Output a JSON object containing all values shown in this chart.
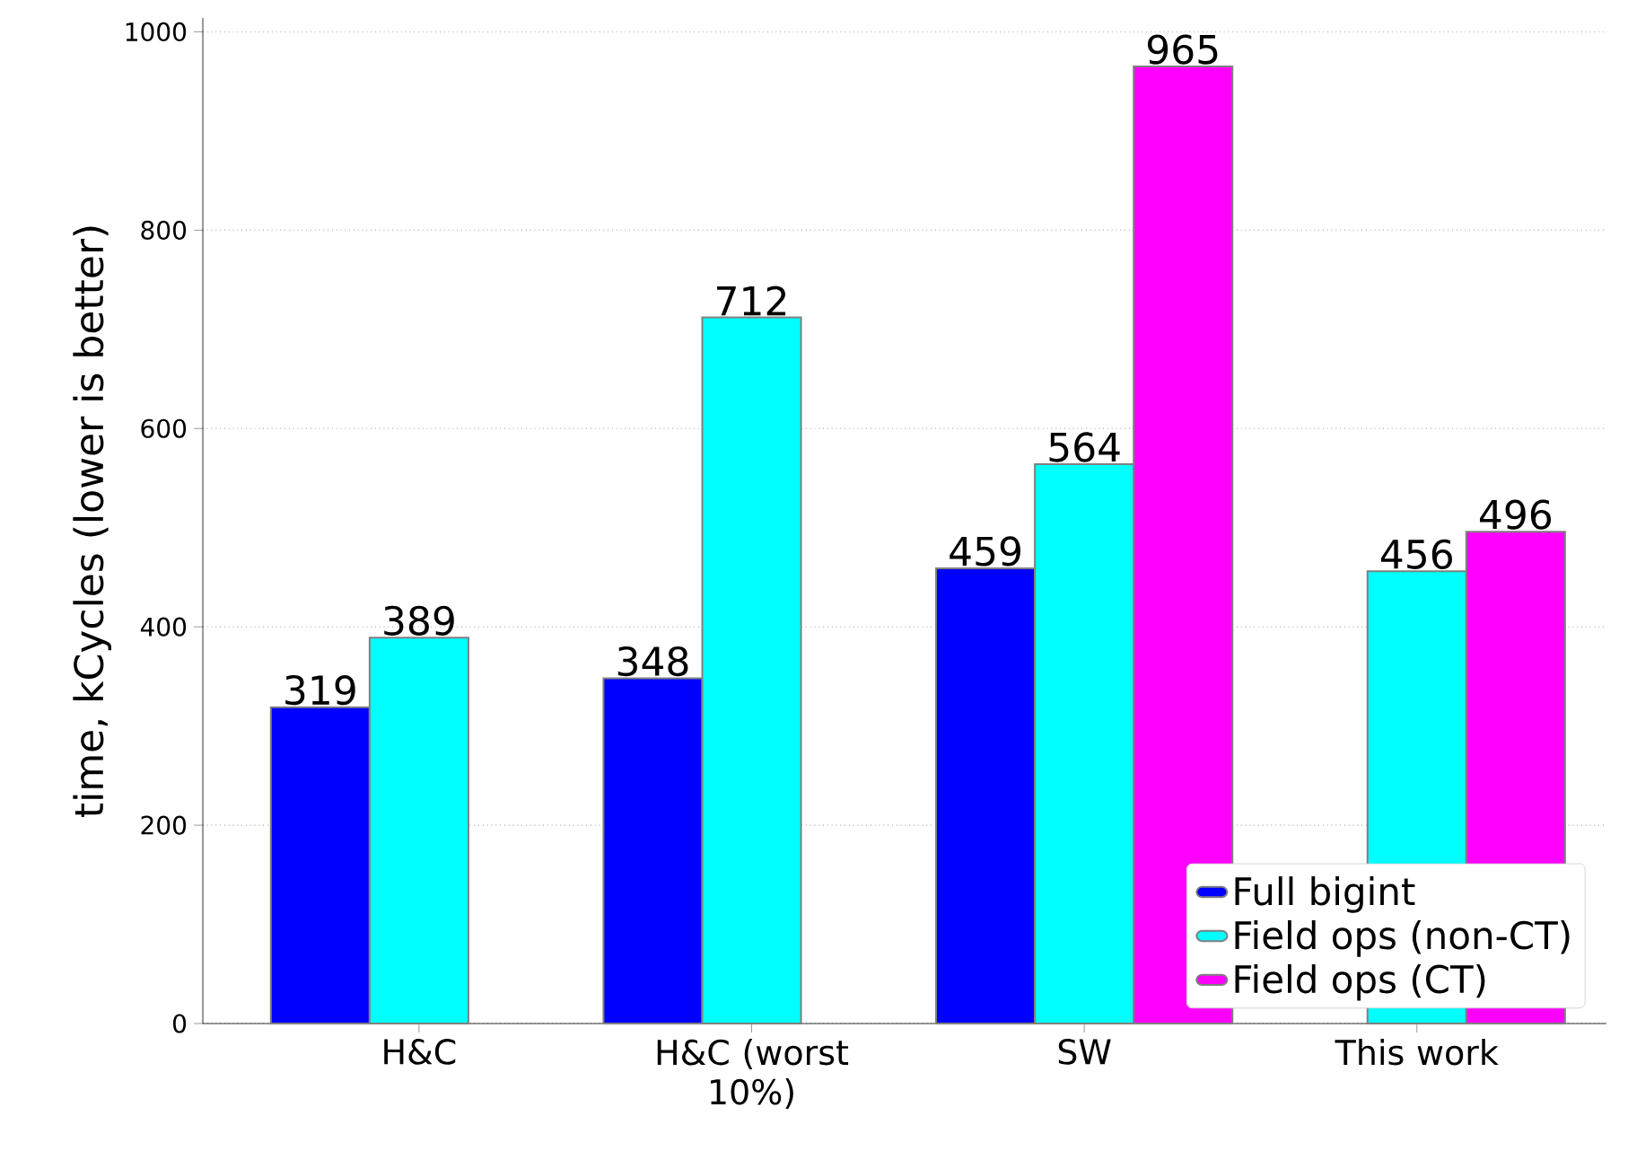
{
  "chart_data": {
    "type": "bar",
    "ylabel": "time, kCycles (lower is better)",
    "categories": [
      "H&C",
      "H&C (worst 10%)",
      "SW",
      "This work"
    ],
    "series": [
      {
        "name": "Full bigint",
        "color": "#0000ff",
        "values": [
          319,
          348,
          459,
          null
        ]
      },
      {
        "name": "Field ops (non-CT)",
        "color": "#00ffff",
        "values": [
          389,
          712,
          564,
          456
        ]
      },
      {
        "name": "Field ops (CT)",
        "color": "#ff00ff",
        "values": [
          null,
          null,
          965,
          496
        ]
      }
    ],
    "ylim": [
      0,
      1014
    ],
    "yticks": [
      0,
      200,
      400,
      600,
      800,
      1000
    ],
    "grid": "y",
    "legend": "bottom right",
    "data_labels": true
  }
}
